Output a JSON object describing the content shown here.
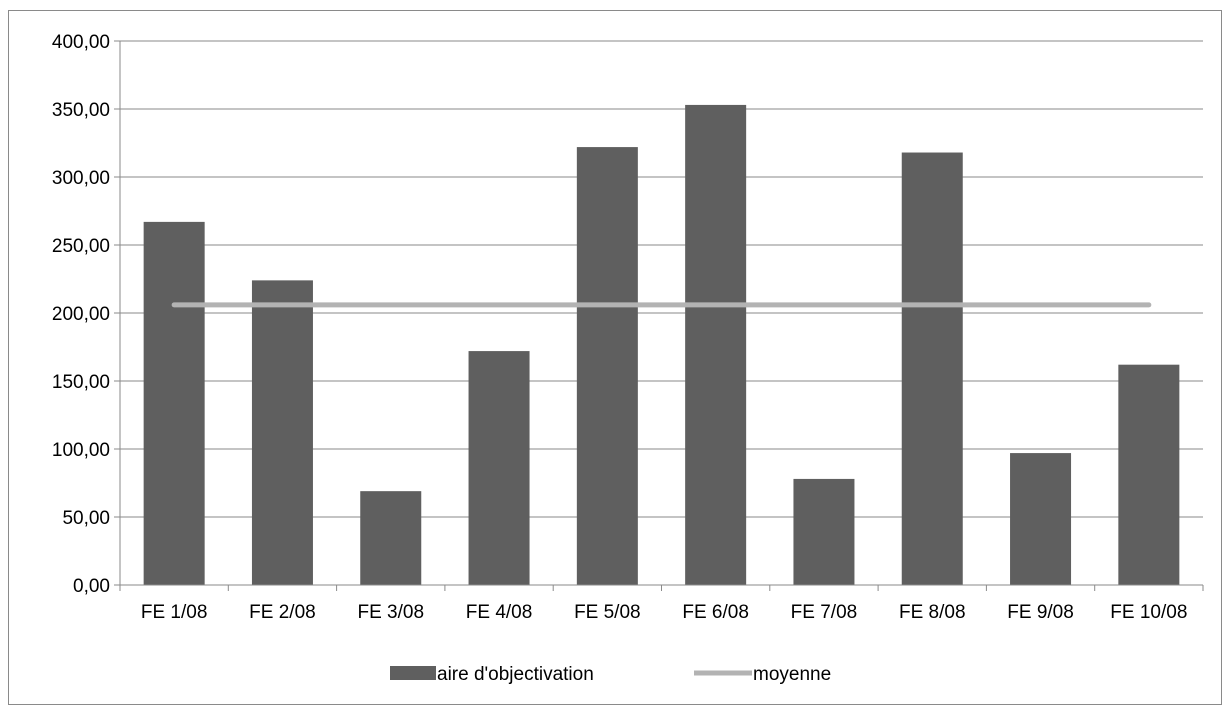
{
  "chart_data": {
    "type": "bar",
    "categories": [
      "FE 1/08",
      "FE 2/08",
      "FE 3/08",
      "FE 4/08",
      "FE 5/08",
      "FE 6/08",
      "FE 7/08",
      "FE 8/08",
      "FE 9/08",
      "FE 10/08"
    ],
    "series": [
      {
        "name": "aire d'objectivation",
        "kind": "bar",
        "color": "#5f5f5f",
        "values": [
          267,
          224,
          69,
          172,
          322,
          353,
          78,
          318,
          97,
          162
        ]
      },
      {
        "name": "moyenne",
        "kind": "line",
        "color": "#b3b3b3",
        "values": [
          206,
          206,
          206,
          206,
          206,
          206,
          206,
          206,
          206,
          206
        ]
      }
    ],
    "ylim": [
      0,
      400
    ],
    "yticks": [
      "0,00",
      "50,00",
      "100,00",
      "150,00",
      "200,00",
      "250,00",
      "300,00",
      "350,00",
      "400,00"
    ],
    "ytick_values": [
      0,
      50,
      100,
      150,
      200,
      250,
      300,
      350,
      400
    ],
    "grid": true,
    "legend_position": "bottom"
  }
}
